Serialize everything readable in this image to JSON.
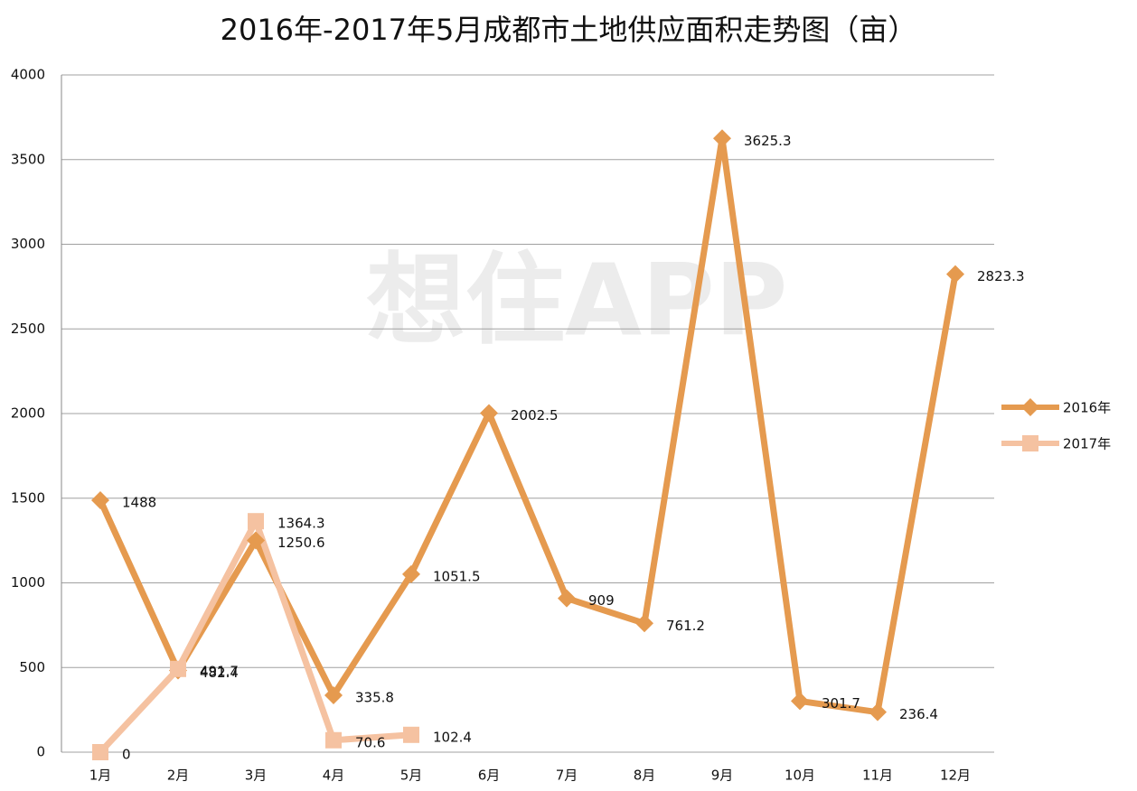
{
  "chart_data": {
    "type": "line",
    "title": "2016年-2017年5月成都市土地供应面积走势图（亩）",
    "watermark": "想住APP",
    "categories": [
      "1月",
      "2月",
      "3月",
      "4月",
      "5月",
      "6月",
      "7月",
      "8月",
      "9月",
      "10月",
      "11月",
      "12月"
    ],
    "series": [
      {
        "name": "2016年",
        "color": "#e59a4f",
        "marker": "diamond",
        "values": [
          1488,
          482.4,
          1250.6,
          335.8,
          1051.5,
          2002.5,
          909,
          761.2,
          3625.3,
          301.7,
          236.4,
          2823.3
        ]
      },
      {
        "name": "2017年",
        "color": "#f5c2a1",
        "marker": "square",
        "values": [
          0,
          491.7,
          1364.3,
          70.6,
          102.4,
          null,
          null,
          null,
          null,
          null,
          null,
          null
        ]
      }
    ],
    "ylim": [
      0,
      4000
    ],
    "yticks": [
      0,
      500,
      1000,
      1500,
      2000,
      2500,
      3000,
      3500,
      4000
    ],
    "grid": true,
    "legend": "right"
  }
}
